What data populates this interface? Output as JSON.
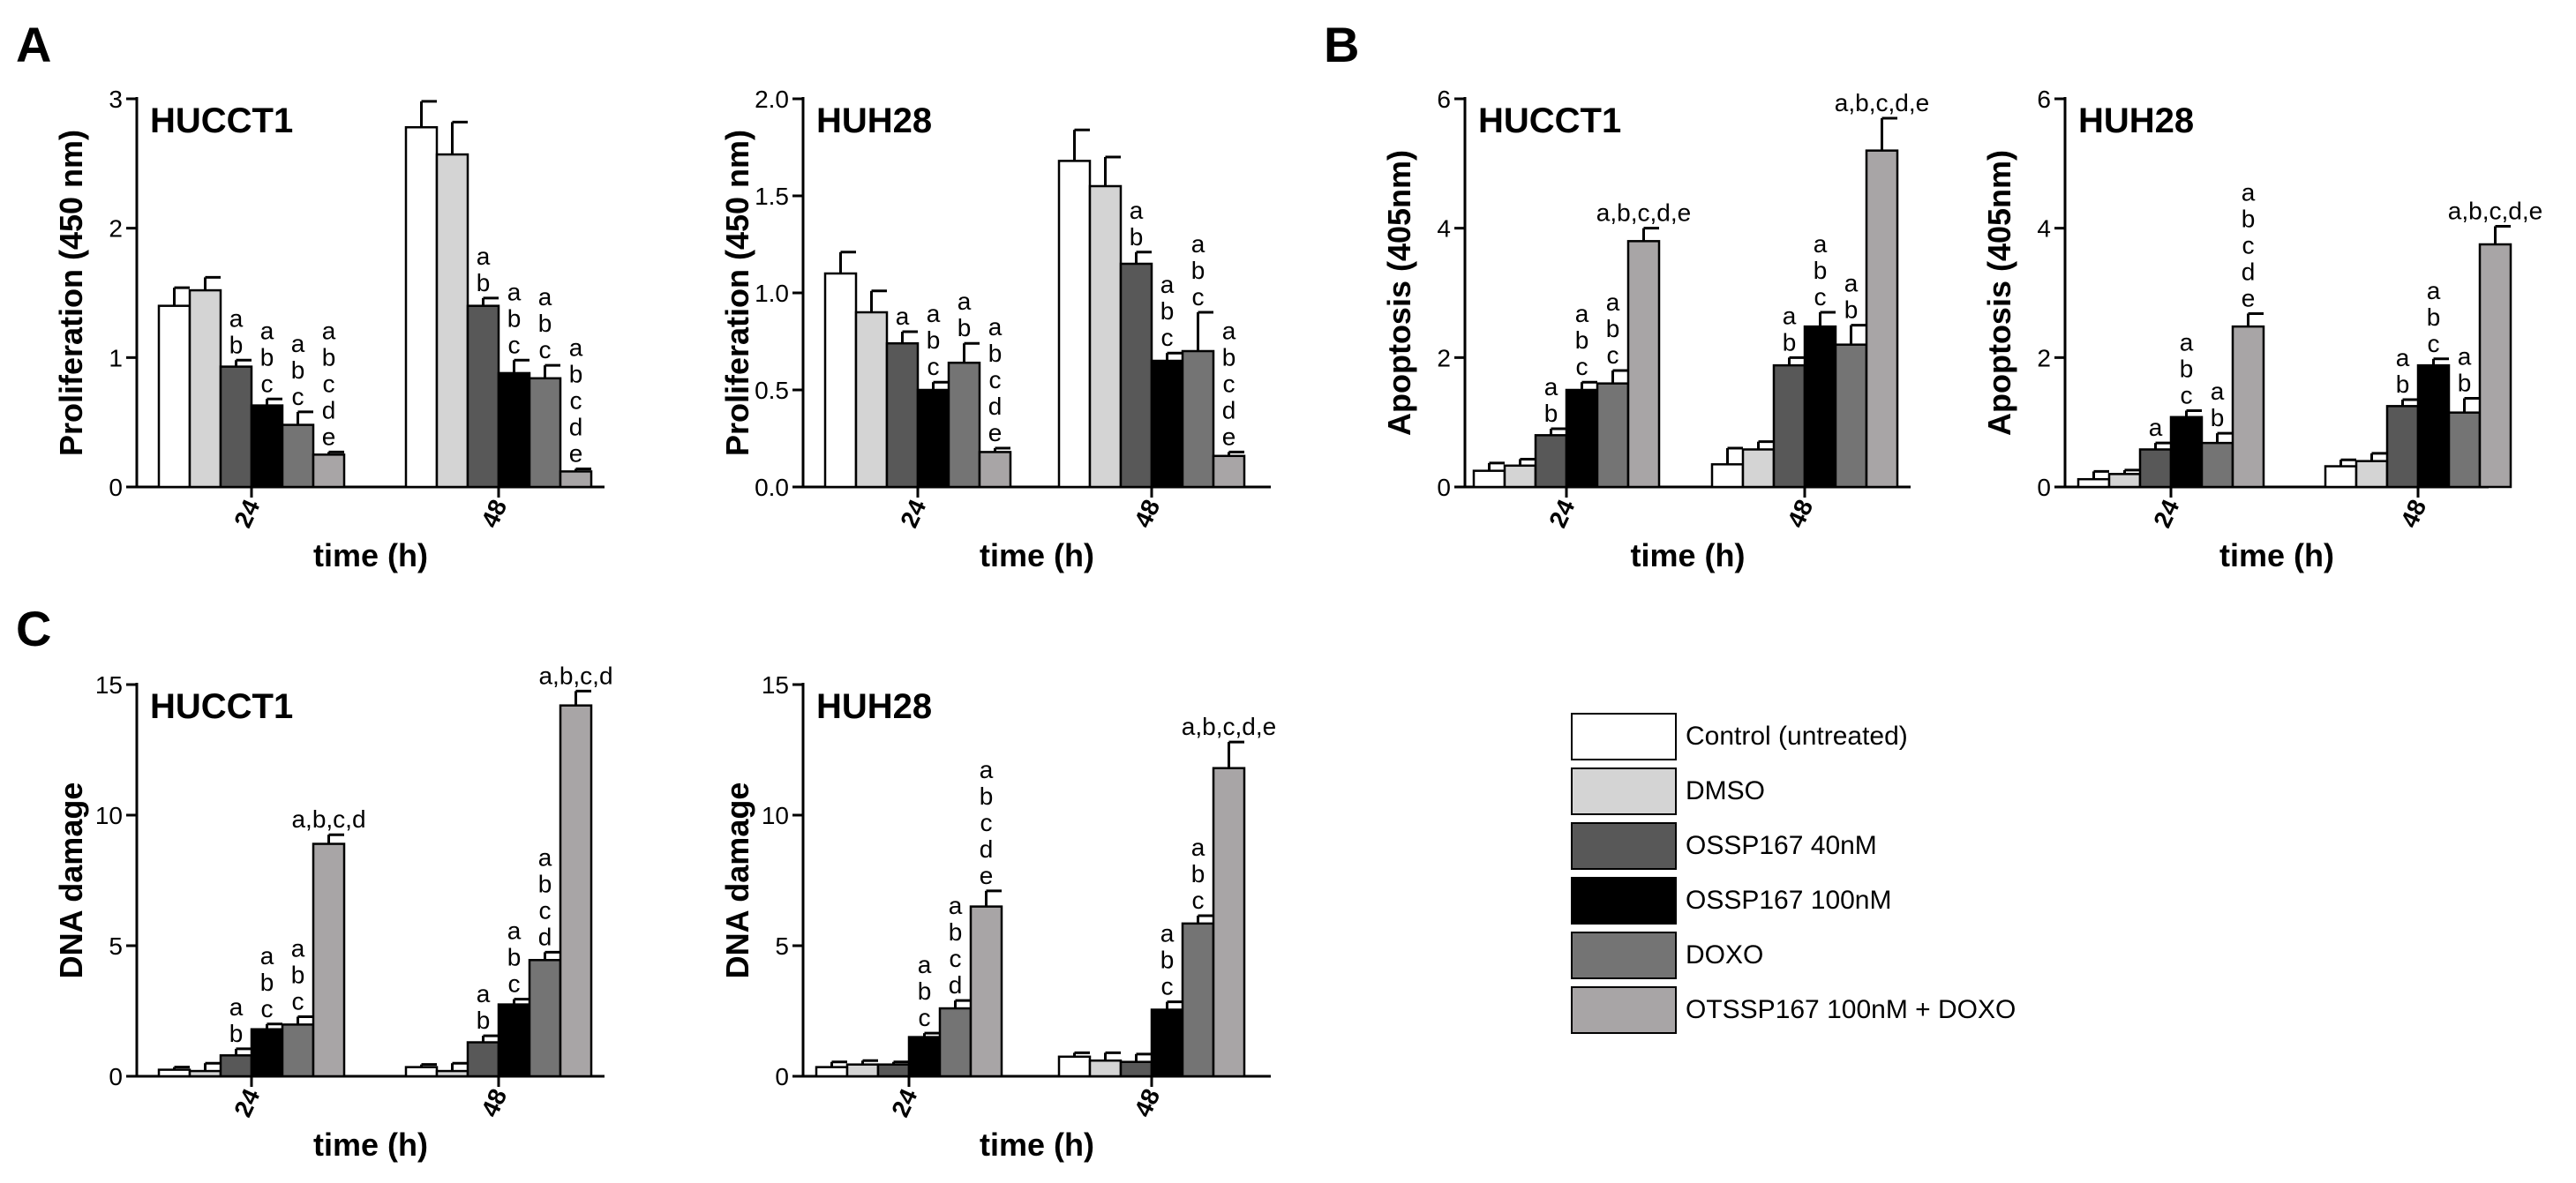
{
  "panel_labels": {
    "a": "A",
    "b": "B",
    "c": "C"
  },
  "legend": {
    "items": [
      {
        "label": "Control (untreated)",
        "color": "#ffffff"
      },
      {
        "label": "DMSO",
        "color": "#d4d4d4"
      },
      {
        "label": "OSSP167 40nM",
        "color": "#585858"
      },
      {
        "label": "OSSP167 100nM",
        "color": "#000000"
      },
      {
        "label": "DOXO",
        "color": "#747474"
      },
      {
        "label": "OTSSP167 100nM + DOXO",
        "color": "#a8a5a6"
      }
    ]
  },
  "chart_data": [
    {
      "type": "bar",
      "title": "HUCCT1",
      "xlabel": "time (h)",
      "ylabel": "Proliferation (450 nm)",
      "categories": [
        "24",
        "48"
      ],
      "ylim": [
        0,
        3
      ],
      "yticks": [
        "0",
        "1",
        "2",
        "3"
      ],
      "series": [
        {
          "name": "Control (untreated)",
          "values": [
            1.4,
            2.78
          ],
          "errors": [
            0.14,
            0.2
          ]
        },
        {
          "name": "DMSO",
          "values": [
            1.52,
            2.57
          ],
          "errors": [
            0.1,
            0.25
          ]
        },
        {
          "name": "OSSP167 40nM",
          "values": [
            0.93,
            1.4
          ],
          "errors": [
            0.05,
            0.06
          ]
        },
        {
          "name": "OSSP167 100nM",
          "values": [
            0.63,
            0.88
          ],
          "errors": [
            0.05,
            0.1
          ]
        },
        {
          "name": "DOXO",
          "values": [
            0.48,
            0.84
          ],
          "errors": [
            0.1,
            0.1
          ]
        },
        {
          "name": "OTSSP167 100nM + DOXO",
          "values": [
            0.25,
            0.12
          ],
          "errors": [
            0.02,
            0.02
          ]
        }
      ],
      "annotations": [
        [
          "",
          "",
          "a\nb",
          "a\nb\nc",
          "a\nb\nc",
          "a\nb\nc\nd\ne"
        ],
        [
          "",
          "",
          "a\nb",
          "a\nb\nc",
          "a\nb\nc",
          "a\nb\nc\nd\ne"
        ]
      ]
    },
    {
      "type": "bar",
      "title": "HUH28",
      "xlabel": "time (h)",
      "ylabel": "Proliferation (450 nm)",
      "categories": [
        "24",
        "48"
      ],
      "ylim": [
        0,
        2
      ],
      "yticks": [
        "0.0",
        "0.5",
        "1.0",
        "1.5",
        "2.0"
      ],
      "series": [
        {
          "name": "Control (untreated)",
          "values": [
            1.1,
            1.68
          ],
          "errors": [
            0.11,
            0.16
          ]
        },
        {
          "name": "DMSO",
          "values": [
            0.9,
            1.55
          ],
          "errors": [
            0.11,
            0.15
          ]
        },
        {
          "name": "OSSP167 40nM",
          "values": [
            0.74,
            1.15
          ],
          "errors": [
            0.06,
            0.06
          ]
        },
        {
          "name": "OSSP167 100nM",
          "values": [
            0.5,
            0.65
          ],
          "errors": [
            0.04,
            0.04
          ]
        },
        {
          "name": "DOXO",
          "values": [
            0.64,
            0.7
          ],
          "errors": [
            0.1,
            0.2
          ]
        },
        {
          "name": "OTSSP167 100nM + DOXO",
          "values": [
            0.18,
            0.16
          ],
          "errors": [
            0.02,
            0.02
          ]
        }
      ],
      "annotations": [
        [
          "",
          "",
          "a",
          "a\nb\nc",
          "a\nb",
          "a\nb\nc\nd\ne"
        ],
        [
          "",
          "",
          "a\nb",
          "a\nb\nc",
          "a\nb\nc",
          "a\nb\nc\nd\ne"
        ]
      ]
    },
    {
      "type": "bar",
      "title": "HUCCT1",
      "xlabel": "time (h)",
      "ylabel": "Apoptosis (405nm)",
      "categories": [
        "24",
        "48"
      ],
      "ylim": [
        0,
        6
      ],
      "yticks": [
        "0",
        "2",
        "4",
        "6"
      ],
      "series": [
        {
          "name": "Control (untreated)",
          "values": [
            0.25,
            0.35
          ],
          "errors": [
            0.12,
            0.25
          ]
        },
        {
          "name": "DMSO",
          "values": [
            0.33,
            0.58
          ],
          "errors": [
            0.1,
            0.12
          ]
        },
        {
          "name": "OSSP167 40nM",
          "values": [
            0.8,
            1.88
          ],
          "errors": [
            0.1,
            0.12
          ]
        },
        {
          "name": "OSSP167 100nM",
          "values": [
            1.5,
            2.48
          ],
          "errors": [
            0.12,
            0.22
          ]
        },
        {
          "name": "DOXO",
          "values": [
            1.6,
            2.2
          ],
          "errors": [
            0.2,
            0.3
          ]
        },
        {
          "name": "OTSSP167 100nM + DOXO",
          "values": [
            3.8,
            5.2
          ],
          "errors": [
            0.2,
            0.5
          ]
        }
      ],
      "annotations": [
        [
          "",
          "",
          "a\nb",
          "a\nb\nc",
          "a\nb\nc",
          "a,b,c,d,e"
        ],
        [
          "",
          "",
          "a\nb",
          "a\nb\nc",
          "a\nb",
          "a,b,c,d,e"
        ]
      ]
    },
    {
      "type": "bar",
      "title": "HUH28",
      "xlabel": "time (h)",
      "ylabel": "Apoptosis (405nm)",
      "categories": [
        "24",
        "48"
      ],
      "ylim": [
        0,
        6
      ],
      "yticks": [
        "0",
        "2",
        "4",
        "6"
      ],
      "series": [
        {
          "name": "Control (untreated)",
          "values": [
            0.12,
            0.32
          ],
          "errors": [
            0.12,
            0.1
          ]
        },
        {
          "name": "DMSO",
          "values": [
            0.2,
            0.4
          ],
          "errors": [
            0.06,
            0.12
          ]
        },
        {
          "name": "OSSP167 40nM",
          "values": [
            0.58,
            1.25
          ],
          "errors": [
            0.1,
            0.1
          ]
        },
        {
          "name": "OSSP167 100nM",
          "values": [
            1.08,
            1.88
          ],
          "errors": [
            0.1,
            0.1
          ]
        },
        {
          "name": "DOXO",
          "values": [
            0.68,
            1.15
          ],
          "errors": [
            0.15,
            0.22
          ]
        },
        {
          "name": "OTSSP167 100nM + DOXO",
          "values": [
            2.48,
            3.75
          ],
          "errors": [
            0.2,
            0.28
          ]
        }
      ],
      "annotations": [
        [
          "",
          "",
          "a",
          "a\nb\nc",
          "a\nb",
          "a\nb\nc\nd\ne"
        ],
        [
          "",
          "",
          "a\nb",
          "a\nb\nc",
          "a\nb",
          "a,b,c,d,e"
        ]
      ]
    },
    {
      "type": "bar",
      "title": "HUCCT1",
      "xlabel": "time (h)",
      "ylabel": "DNA damage",
      "categories": [
        "24",
        "48"
      ],
      "ylim": [
        0,
        15
      ],
      "yticks": [
        "0",
        "5",
        "10",
        "15"
      ],
      "series": [
        {
          "name": "Control (untreated)",
          "values": [
            0.25,
            0.35
          ],
          "errors": [
            0.1,
            0.1
          ]
        },
        {
          "name": "DMSO",
          "values": [
            0.2,
            0.2
          ],
          "errors": [
            0.3,
            0.3
          ]
        },
        {
          "name": "OSSP167 40nM",
          "values": [
            0.8,
            1.3
          ],
          "errors": [
            0.25,
            0.25
          ]
        },
        {
          "name": "OSSP167 100nM",
          "values": [
            1.8,
            2.75
          ],
          "errors": [
            0.2,
            0.2
          ]
        },
        {
          "name": "DOXO",
          "values": [
            1.98,
            4.45
          ],
          "errors": [
            0.3,
            0.3
          ]
        },
        {
          "name": "OTSSP167 100nM + DOXO",
          "values": [
            8.9,
            14.2
          ],
          "errors": [
            0.35,
            0.55
          ]
        }
      ],
      "annotations": [
        [
          "",
          "",
          "a\nb",
          "a\nb\nc",
          "a\nb\nc",
          "a,b,c,d"
        ],
        [
          "",
          "",
          "a\nb",
          "a\nb\nc",
          "a\nb\nc\nd",
          "a,b,c,d"
        ]
      ]
    },
    {
      "type": "bar",
      "title": "HUH28",
      "xlabel": "time (h)",
      "ylabel": "DNA damage",
      "categories": [
        "24",
        "48"
      ],
      "ylim": [
        0,
        15
      ],
      "yticks": [
        "0",
        "5",
        "10",
        "15"
      ],
      "series": [
        {
          "name": "Control (untreated)",
          "values": [
            0.35,
            0.75
          ],
          "errors": [
            0.2,
            0.15
          ]
        },
        {
          "name": "DMSO",
          "values": [
            0.45,
            0.6
          ],
          "errors": [
            0.15,
            0.3
          ]
        },
        {
          "name": "OSSP167 40nM",
          "values": [
            0.45,
            0.55
          ],
          "errors": [
            0.1,
            0.3
          ]
        },
        {
          "name": "OSSP167 100nM",
          "values": [
            1.5,
            2.55
          ],
          "errors": [
            0.15,
            0.3
          ]
        },
        {
          "name": "DOXO",
          "values": [
            2.6,
            5.85
          ],
          "errors": [
            0.3,
            0.3
          ]
        },
        {
          "name": "OTSSP167 100nM + DOXO",
          "values": [
            6.5,
            11.8
          ],
          "errors": [
            0.6,
            1.0
          ]
        }
      ],
      "annotations": [
        [
          "",
          "",
          "",
          "a\nb\nc",
          "a\nb\nc\nd",
          "a\nb\nc\nd\ne"
        ],
        [
          "",
          "",
          "",
          "a\nb\nc",
          "a\nb\nc",
          "a,b,c,d,e"
        ]
      ]
    }
  ]
}
